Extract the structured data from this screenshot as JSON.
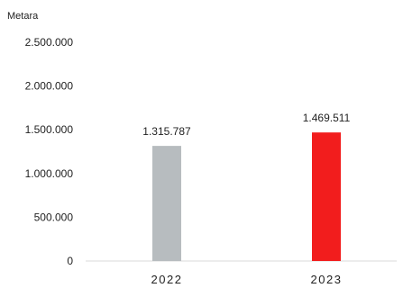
{
  "chart_data": {
    "type": "bar",
    "unit_label": "Metara",
    "categories": [
      "2022",
      "2023"
    ],
    "values": [
      1315787,
      1469511
    ],
    "value_labels": [
      "1.315.787",
      "1.469.511"
    ],
    "bar_colors": [
      "#b7bcbf",
      "#f21d1d"
    ],
    "ylim": [
      0,
      2500000
    ],
    "yticks": [
      0,
      500000,
      1000000,
      1500000,
      2000000,
      2500000
    ],
    "ytick_labels": [
      "0",
      "500.000",
      "1.000.000",
      "1.500.000",
      "2.000.000",
      "2.500.000"
    ],
    "grid": false,
    "legend": "none",
    "title": "",
    "xlabel": "",
    "ylabel": ""
  }
}
